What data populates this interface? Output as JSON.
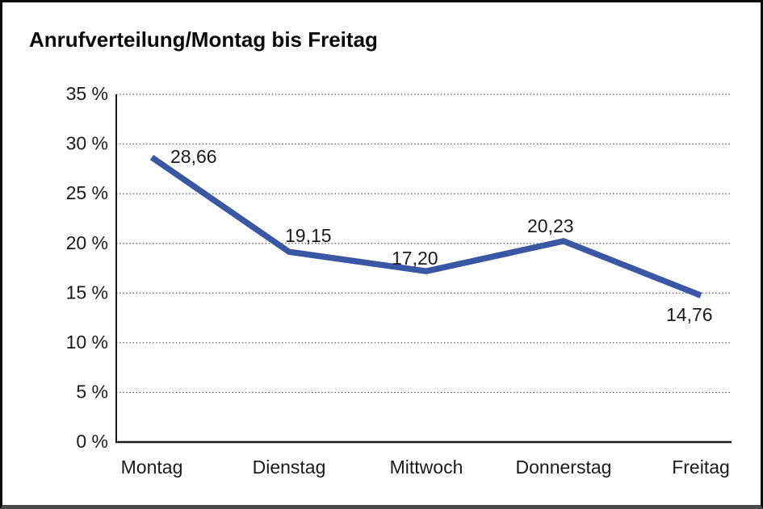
{
  "figure": {
    "background": "#ffffff",
    "frame_color": "#0a0a0a"
  },
  "chart_data": {
    "type": "line",
    "title": "Anrufverteilung/Montag bis Freitag",
    "categories": [
      "Montag",
      "Dienstag",
      "Mittwoch",
      "Donnerstag",
      "Freitag"
    ],
    "series": [
      {
        "name": "Anrufverteilung",
        "values": [
          28.66,
          19.15,
          17.2,
          20.23,
          14.76
        ]
      }
    ],
    "value_labels": [
      "28,66",
      "19,15",
      "17,20",
      "20,23",
      "14,76"
    ],
    "ytick_labels": [
      "35 %",
      "30 %",
      "25 %",
      "20 %",
      "15 %",
      "10 %",
      "5 %",
      "0 %"
    ],
    "ytick_values": [
      35,
      30,
      25,
      20,
      15,
      10,
      5,
      0
    ],
    "ylim": [
      0,
      35
    ],
    "ytick_step": 5,
    "xlabel": "",
    "ylabel": "",
    "legend": "none",
    "grid": "horizontal-dotted",
    "line_color": "#3A57A3",
    "grid_color": "#5a5a5a",
    "axis_color": "#1a1a1a",
    "text_color": "#1a1a1a"
  }
}
